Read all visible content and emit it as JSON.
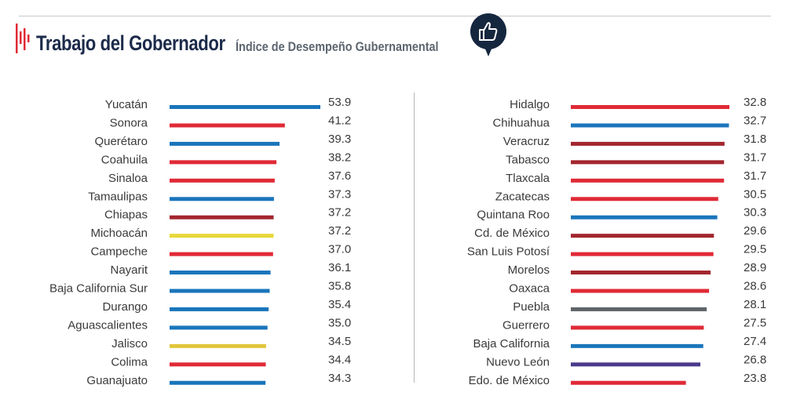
{
  "header": {
    "title": "Trabajo del Gobernador",
    "subtitle": "Índice de Desempeño Gubernamental",
    "badge_icon": "thumbs-up-icon",
    "logo_icon": "bar-pulse-logo-icon"
  },
  "colors": {
    "accent_red": "#e02a36",
    "navy": "#1c2b4a",
    "badge": "#15263f"
  },
  "chart_data": [
    {
      "type": "bar",
      "orientation": "horizontal",
      "categories": [
        "Yucatán",
        "Sonora",
        "Querétaro",
        "Coahuila",
        "Sinaloa",
        "Tamaulipas",
        "Chiapas",
        "Michoacán",
        "Campeche",
        "Nayarit",
        "Baja California Sur",
        "Durango",
        "Aguascalientes",
        "Jalisco",
        "Colima",
        "Guanajuato"
      ],
      "values": [
        53.9,
        41.2,
        39.3,
        38.2,
        37.6,
        37.3,
        37.2,
        37.2,
        37.0,
        36.1,
        35.8,
        35.4,
        35.0,
        34.5,
        34.4,
        34.3
      ],
      "value_labels": [
        "53.9",
        "41.2",
        "39.3",
        "38.2",
        "37.6",
        "37.3",
        "37.2",
        "37.2",
        "37.0",
        "36.1",
        "35.8",
        "35.4",
        "35.0",
        "34.5",
        "34.4",
        "34.3"
      ],
      "colors": [
        "#1a75bb",
        "#e02a36",
        "#1a75bb",
        "#e02a36",
        "#e02a36",
        "#1a75bb",
        "#a3262e",
        "#e6d83a",
        "#e02a36",
        "#1a75bb",
        "#1a75bb",
        "#1a75bb",
        "#1a75bb",
        "#e0c53a",
        "#e02a36",
        "#1a75bb"
      ],
      "xlim": [
        0,
        53.9
      ],
      "title": "",
      "xlabel": "",
      "ylabel": "",
      "grid": false,
      "legend": "none"
    },
    {
      "type": "bar",
      "orientation": "horizontal",
      "categories": [
        "Hidalgo",
        "Chihuahua",
        "Veracruz",
        "Tabasco",
        "Tlaxcala",
        "Zacatecas",
        "Quintana Roo",
        "Cd. de México",
        "San Luis Potosí",
        "Morelos",
        "Oaxaca",
        "Puebla",
        "Guerrero",
        "Baja California",
        "Nuevo León",
        "Edo. de México"
      ],
      "values": [
        32.8,
        32.7,
        31.8,
        31.7,
        31.7,
        30.5,
        30.3,
        29.6,
        29.5,
        28.9,
        28.6,
        28.1,
        27.5,
        27.4,
        26.8,
        23.8
      ],
      "value_labels": [
        "32.8",
        "32.7",
        "31.8",
        "31.7",
        "31.7",
        "30.5",
        "30.3",
        "29.6",
        "29.5",
        "28.9",
        "28.6",
        "28.1",
        "27.5",
        "27.4",
        "26.8",
        "23.8"
      ],
      "colors": [
        "#e02a36",
        "#1a75bb",
        "#a3262e",
        "#a3262e",
        "#e02a36",
        "#e02a36",
        "#1a75bb",
        "#a3262e",
        "#e02a36",
        "#a3262e",
        "#e02a36",
        "#5f6468",
        "#e02a36",
        "#1a75bb",
        "#4a3a8c",
        "#e02a36"
      ],
      "xlim": [
        0,
        32.8
      ],
      "title": "",
      "xlabel": "",
      "ylabel": "",
      "grid": false,
      "legend": "none"
    }
  ]
}
